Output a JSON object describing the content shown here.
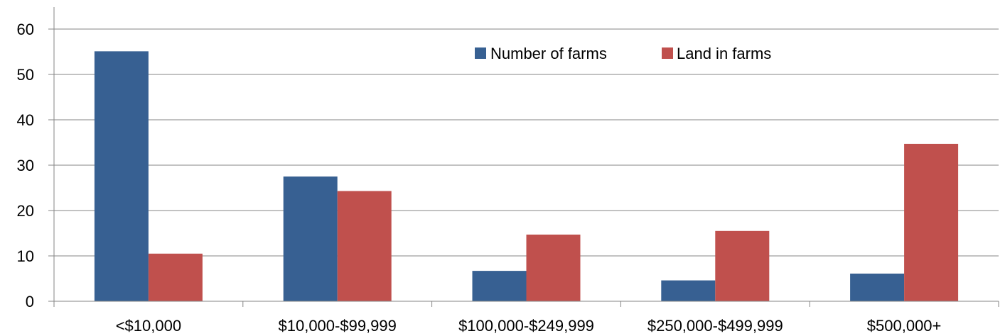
{
  "chart_data": {
    "type": "bar",
    "title": "",
    "xlabel": "",
    "ylabel": "",
    "categories": [
      "<$10,000",
      "$10,000-$99,999",
      "$100,000-$249,999",
      "$250,000-$499,999",
      "$500,000+"
    ],
    "series": [
      {
        "name": "Number of farms",
        "color": "#376092",
        "values": [
          55.1,
          27.5,
          6.7,
          4.6,
          6.1
        ]
      },
      {
        "name": "Land in farms",
        "color": "#C0504D",
        "values": [
          10.5,
          24.3,
          14.7,
          15.5,
          34.7
        ]
      }
    ],
    "ylim": [
      0,
      60
    ],
    "yticks": [
      "0",
      "10",
      "20",
      "30",
      "40",
      "50",
      "60"
    ],
    "grid": true,
    "legend_position": "top-right"
  }
}
